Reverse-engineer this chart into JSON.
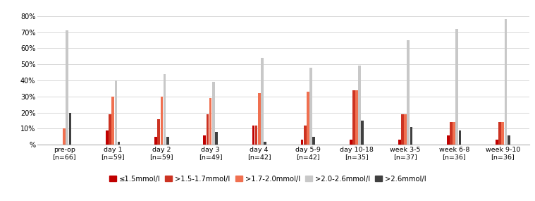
{
  "categories": [
    "pre-op\n[n=66]",
    "day 1\n[n=59]",
    "day 2\n[n=59]",
    "day 3\n[n=49]",
    "day 4\n[n=42]",
    "day 5-9\n[n=42]",
    "day 10-18\n[n=35]",
    "week 3-5\n[n=37]",
    "week 6-8\n[n=36]",
    "week 9-10\n[n=36]"
  ],
  "series": [
    {
      "label": "≤1.5mmol/l",
      "color": "#C00000",
      "values": [
        0,
        9,
        5,
        6,
        12,
        3,
        3,
        3,
        6,
        3
      ]
    },
    {
      "label": ">1.5-1.7mmol/l",
      "color": "#CC3322",
      "values": [
        0,
        19,
        16,
        19,
        12,
        12,
        34,
        19,
        14,
        14
      ]
    },
    {
      "label": ">1.7-2.0mmol/l",
      "color": "#F07050",
      "values": [
        10,
        30,
        30,
        29,
        32,
        33,
        34,
        19,
        14,
        14
      ]
    },
    {
      "label": ">2.0-2.6mmol/l",
      "color": "#C8C8C8",
      "values": [
        71,
        40,
        44,
        39,
        54,
        48,
        49,
        65,
        72,
        78
      ]
    },
    {
      "label": ">2.6mmol/l",
      "color": "#404040",
      "values": [
        20,
        2,
        5,
        8,
        2,
        5,
        15,
        11,
        9,
        6
      ]
    }
  ],
  "ylim": [
    0,
    85
  ],
  "yticks": [
    0,
    10,
    20,
    30,
    40,
    50,
    60,
    70,
    80
  ],
  "ytick_labels": [
    "%",
    "10%",
    "20%",
    "30%",
    "40%",
    "50%",
    "60%",
    "70%",
    "80%"
  ],
  "background_color": "#FFFFFF",
  "grid_color": "#D8D8D8",
  "bar_width": 0.055,
  "group_width": 0.38
}
